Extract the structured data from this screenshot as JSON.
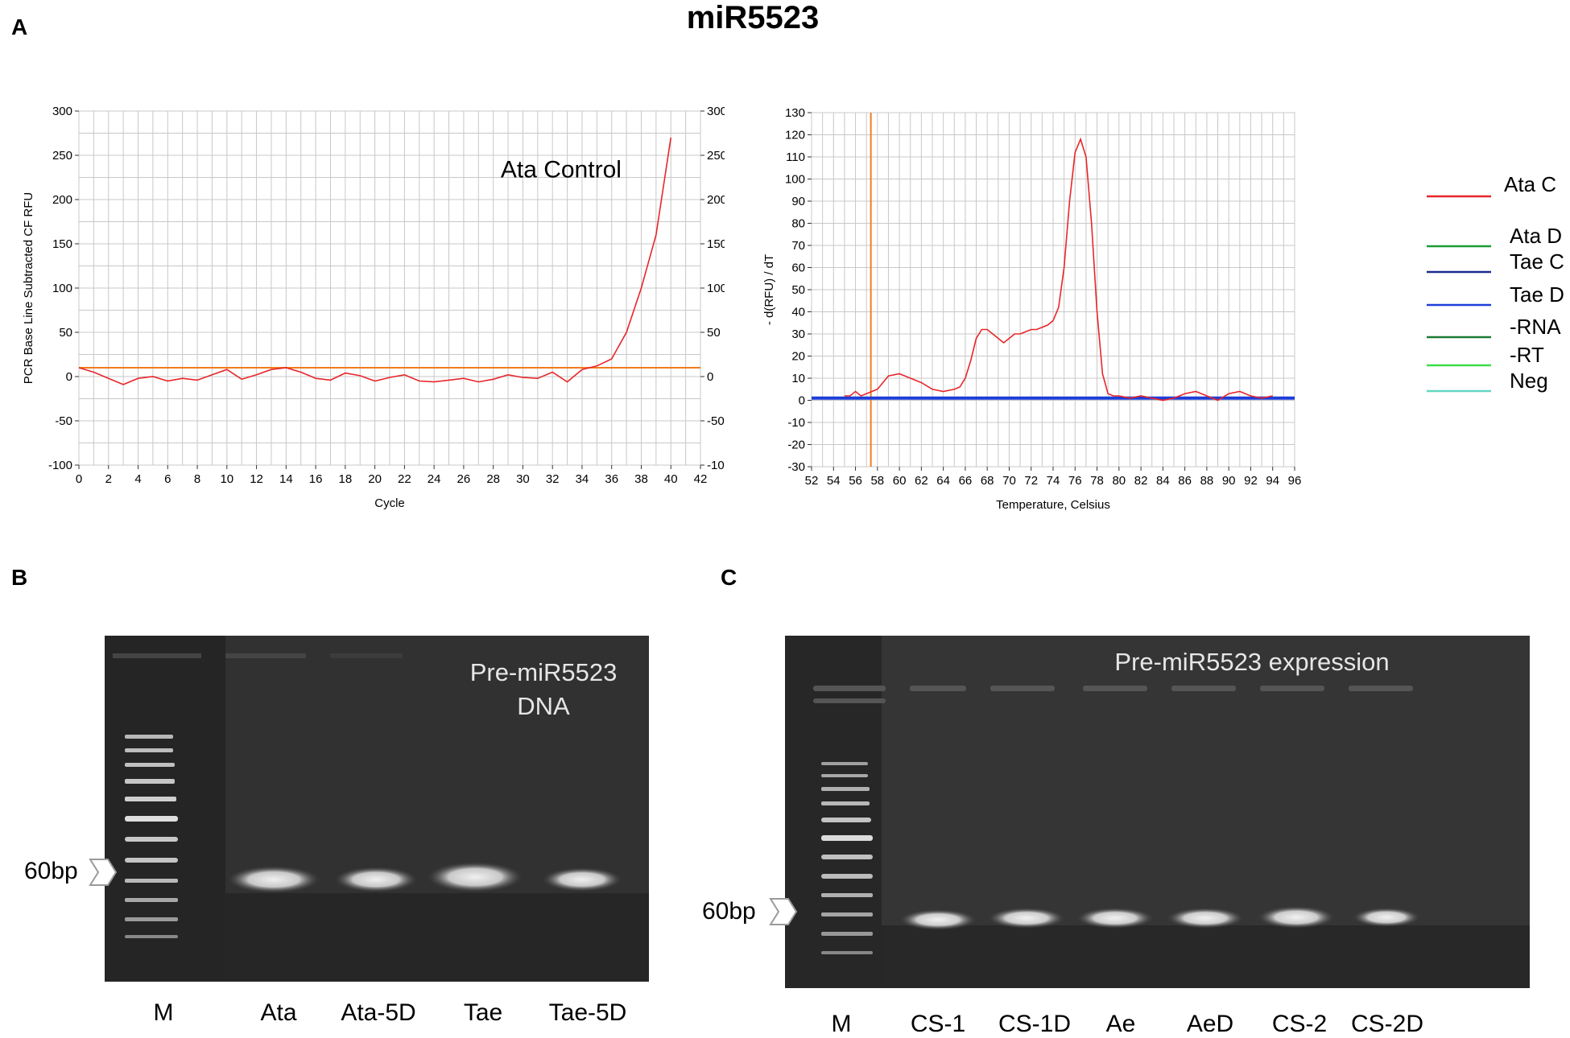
{
  "figure": {
    "title": "miR5523",
    "panels": {
      "a": "A",
      "b": "B",
      "c": "C"
    }
  },
  "chart_data": [
    {
      "type": "line",
      "title": "",
      "annotation": "Ata Control",
      "xlabel": "Cycle",
      "ylabel": "PCR Base Line Subtracted CF RFU",
      "xlim": [
        0,
        42
      ],
      "ylim": [
        -100,
        300
      ],
      "x_ticks": [
        "0",
        "2",
        "4",
        "6",
        "8",
        "10",
        "12",
        "14",
        "16",
        "18",
        "20",
        "22",
        "24",
        "26",
        "28",
        "30",
        "32",
        "34",
        "36",
        "38",
        "40",
        "42"
      ],
      "y_ticks": [
        "300",
        "250",
        "200",
        "150",
        "100",
        "50",
        "0",
        "-50",
        "-100"
      ],
      "grid": true,
      "threshold": {
        "value": 10,
        "color": "#f07c1e"
      },
      "series": [
        {
          "name": "Ata Control",
          "color": "#e8262a",
          "x": [
            0,
            1,
            2,
            3,
            4,
            5,
            6,
            7,
            8,
            9,
            10,
            11,
            12,
            13,
            14,
            15,
            16,
            17,
            18,
            19,
            20,
            21,
            22,
            23,
            24,
            25,
            26,
            27,
            28,
            29,
            30,
            31,
            32,
            33,
            34,
            35,
            36,
            37,
            38,
            39,
            40
          ],
          "y": [
            10,
            5,
            -2,
            -9,
            -2,
            0,
            -5,
            -2,
            -4,
            2,
            8,
            -3,
            2,
            8,
            10,
            5,
            -2,
            -4,
            4,
            1,
            -5,
            -1,
            2,
            -5,
            -6,
            -4,
            -2,
            -6,
            -3,
            2,
            -1,
            -2,
            5,
            -6,
            8,
            12,
            20,
            50,
            100,
            160,
            270
          ]
        }
      ]
    },
    {
      "type": "line",
      "title": "",
      "xlabel": "Temperature, Celsius",
      "ylabel": "- d(RFU) / dT",
      "xlim": [
        52,
        96
      ],
      "ylim": [
        -30,
        130
      ],
      "x_ticks": [
        "52",
        "54",
        "56",
        "58",
        "60",
        "62",
        "64",
        "66",
        "68",
        "70",
        "72",
        "74",
        "76",
        "78",
        "80",
        "82",
        "84",
        "86",
        "88",
        "90",
        "92",
        "94",
        "96"
      ],
      "y_ticks": [
        "130",
        "120",
        "110",
        "100",
        "90",
        "80",
        "70",
        "60",
        "50",
        "40",
        "30",
        "20",
        "10",
        "0",
        "-10",
        "-20",
        "-30"
      ],
      "grid": true,
      "marker_line": {
        "x": 57.4,
        "color": "#f07c1e"
      },
      "series": [
        {
          "name": "Ata C",
          "color": "#e8262a",
          "x": [
            55,
            55.5,
            56,
            56.5,
            57,
            57.5,
            58,
            58.5,
            59,
            60,
            61,
            62,
            63,
            64,
            65,
            65.5,
            66,
            66.5,
            67,
            67.5,
            68,
            68.5,
            69,
            69.5,
            70,
            70.5,
            71,
            71.5,
            72,
            72.5,
            73,
            73.5,
            74,
            74.5,
            75,
            75.5,
            76,
            76.5,
            77,
            77.5,
            78,
            78.5,
            79,
            79.5,
            80,
            81,
            82,
            83,
            84,
            85,
            86,
            87,
            88,
            89,
            90,
            91,
            92,
            93,
            94
          ],
          "y": [
            2,
            2,
            4,
            2,
            3,
            4,
            5,
            8,
            11,
            12,
            10,
            8,
            5,
            4,
            5,
            6,
            10,
            18,
            28,
            32,
            32,
            30,
            28,
            26,
            28,
            30,
            30,
            31,
            32,
            32,
            33,
            34,
            36,
            42,
            60,
            90,
            112,
            118,
            110,
            80,
            40,
            12,
            3,
            2,
            2,
            1,
            2,
            1,
            0,
            1,
            3,
            4,
            2,
            0,
            3,
            4,
            2,
            1,
            2
          ]
        },
        {
          "name": "Ata D",
          "color": "#1a9d36"
        },
        {
          "name": "Tae C",
          "color": "#1d2a8f"
        },
        {
          "name": "Tae D",
          "color": "#1d3ed8",
          "x": [
            52,
            96
          ],
          "y": [
            1,
            1
          ]
        },
        {
          "name": "-RNA",
          "color": "#1b7a34"
        },
        {
          "name": "-RT",
          "color": "#3ddc4a"
        },
        {
          "name": "Neg",
          "color": "#63d6c3"
        }
      ]
    }
  ],
  "gel_b": {
    "title_line1": "Pre-miR5523",
    "title_line2": "DNA",
    "bp_label": "60bp",
    "lanes": [
      "M",
      "Ata",
      "Ata-5D",
      "Tae",
      "Tae-5D"
    ]
  },
  "gel_c": {
    "title": "Pre-miR5523 expression",
    "bp_label": "60bp",
    "lanes": [
      "M",
      "CS-1",
      "CS-1D",
      "Ae",
      "AeD",
      "CS-2",
      "CS-2D"
    ]
  },
  "colors": {
    "grid": "#c8c8c8",
    "gel_bg": "#2b2b2b",
    "band": "#d8d8d8"
  }
}
